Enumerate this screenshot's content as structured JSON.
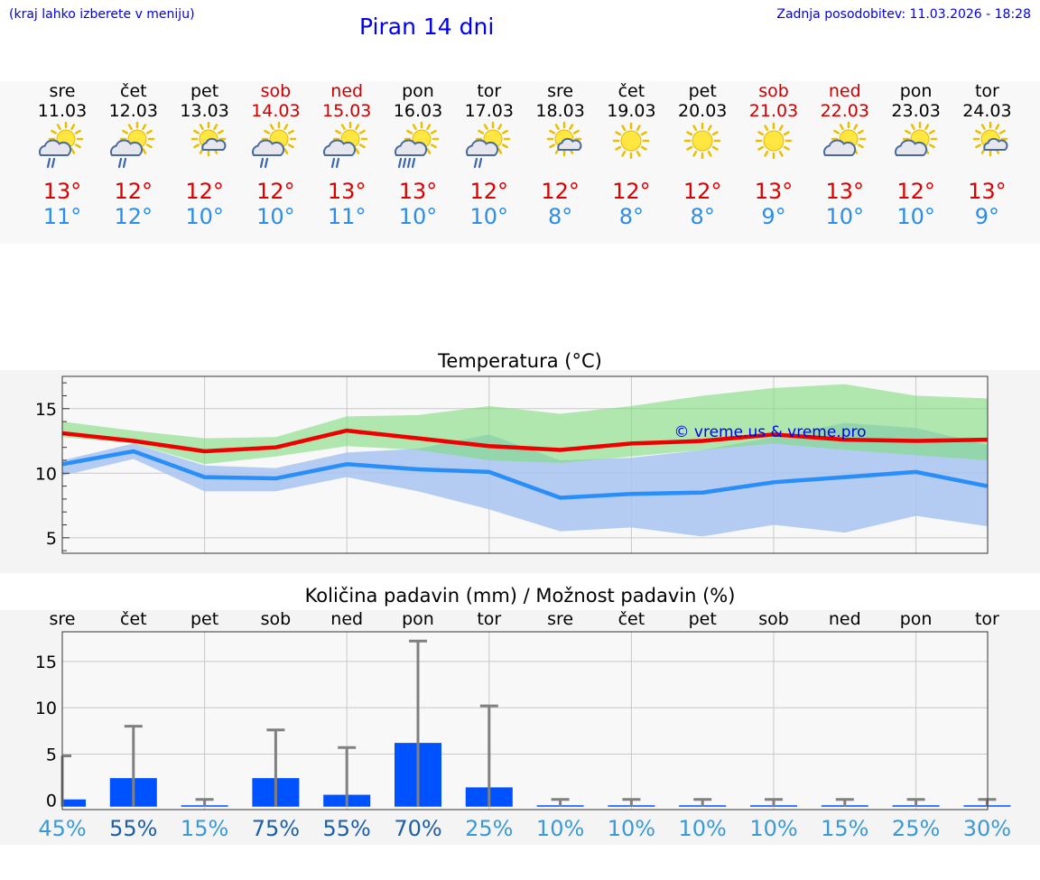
{
  "header": {
    "hint": "(kraj lahko izberete v meniju)",
    "title": "Piran 14 dni",
    "updated": "Zadnja posodobitev: 11.03.2026 - 18:28"
  },
  "days": [
    {
      "name": "sre",
      "date": "11.03",
      "weekend": false,
      "icon": "sun-cloud-rain-icon",
      "max": "13°",
      "min": "11°"
    },
    {
      "name": "čet",
      "date": "12.03",
      "weekend": false,
      "icon": "sun-cloud-rain-icon",
      "max": "12°",
      "min": "12°"
    },
    {
      "name": "pet",
      "date": "13.03",
      "weekend": false,
      "icon": "sun-small-cloud-icon",
      "max": "12°",
      "min": "10°"
    },
    {
      "name": "sob",
      "date": "14.03",
      "weekend": true,
      "icon": "sun-cloud-rain-icon",
      "max": "12°",
      "min": "10°"
    },
    {
      "name": "ned",
      "date": "15.03",
      "weekend": true,
      "icon": "sun-cloud-rain-icon",
      "max": "13°",
      "min": "11°"
    },
    {
      "name": "pon",
      "date": "16.03",
      "weekend": false,
      "icon": "sun-cloud-heavy-rain-icon",
      "max": "13°",
      "min": "10°"
    },
    {
      "name": "tor",
      "date": "17.03",
      "weekend": false,
      "icon": "sun-cloud-rain-icon",
      "max": "12°",
      "min": "10°"
    },
    {
      "name": "sre",
      "date": "18.03",
      "weekend": false,
      "icon": "sun-small-cloud-icon",
      "max": "12°",
      "min": "8°"
    },
    {
      "name": "čet",
      "date": "19.03",
      "weekend": false,
      "icon": "sun-icon",
      "max": "12°",
      "min": "8°"
    },
    {
      "name": "pet",
      "date": "20.03",
      "weekend": false,
      "icon": "sun-icon",
      "max": "12°",
      "min": "8°"
    },
    {
      "name": "sob",
      "date": "21.03",
      "weekend": true,
      "icon": "sun-icon",
      "max": "13°",
      "min": "9°"
    },
    {
      "name": "ned",
      "date": "22.03",
      "weekend": true,
      "icon": "sun-cloud-icon",
      "max": "13°",
      "min": "10°"
    },
    {
      "name": "pon",
      "date": "23.03",
      "weekend": false,
      "icon": "sun-cloud-icon",
      "max": "12°",
      "min": "10°"
    },
    {
      "name": "tor",
      "date": "24.03",
      "weekend": false,
      "icon": "sun-small-cloud-icon",
      "max": "13°",
      "min": "9°"
    }
  ],
  "chart_data": [
    {
      "type": "line",
      "title": "Temperatura (°C)",
      "watermark": "© vreme.us & vreme.pro",
      "ylim": [
        3.8,
        17.5
      ],
      "yticks": [
        5,
        10,
        15
      ],
      "grid": true,
      "x": [
        0,
        1,
        2,
        3,
        4,
        5,
        6,
        7,
        8,
        9,
        10,
        11,
        12,
        13
      ],
      "series": [
        {
          "name": "max",
          "color": "#ee0000",
          "values": [
            13.1,
            12.5,
            11.7,
            12.0,
            13.3,
            12.7,
            12.1,
            11.8,
            12.3,
            12.5,
            13.0,
            12.6,
            12.5,
            12.6
          ]
        },
        {
          "name": "min",
          "color": "#2a8ef8",
          "values": [
            10.7,
            11.7,
            9.7,
            9.6,
            10.7,
            10.3,
            10.1,
            8.1,
            8.4,
            8.5,
            9.3,
            9.7,
            10.1,
            9.0
          ]
        }
      ],
      "max_band": {
        "color": "#7fdc7f",
        "upper": [
          14.0,
          13.3,
          12.7,
          12.8,
          14.4,
          14.5,
          15.2,
          14.6,
          15.2,
          16.0,
          16.6,
          16.9,
          16.0,
          15.8
        ],
        "lower": [
          12.8,
          12.3,
          10.7,
          11.3,
          12.1,
          11.8,
          11.0,
          10.8,
          11.3,
          11.8,
          12.3,
          11.8,
          11.4,
          11.0
        ]
      },
      "min_band": {
        "color": "#a8c4f0",
        "upper": [
          11.0,
          12.3,
          10.6,
          10.4,
          11.6,
          11.9,
          13.0,
          11.0,
          11.2,
          11.8,
          12.8,
          13.9,
          13.5,
          12.2
        ],
        "lower": [
          9.8,
          11.1,
          8.6,
          8.6,
          9.7,
          8.6,
          7.2,
          5.5,
          5.8,
          5.1,
          6.0,
          5.4,
          6.7,
          5.9
        ]
      }
    },
    {
      "type": "bar",
      "title": "Količina padavin (mm) / Možnost padavin (%)",
      "ylim": [
        -1,
        18.2
      ],
      "yticks": [
        0,
        5,
        10,
        15
      ],
      "grid": true,
      "categories": [
        "sre",
        "čet",
        "pet",
        "sob",
        "ned",
        "pon",
        "tor",
        "sre",
        "čet",
        "pet",
        "sob",
        "ned",
        "pon",
        "tor"
      ],
      "values": [
        0.1,
        2.4,
        0,
        2.4,
        0.6,
        6.2,
        1.4,
        0,
        0,
        0,
        0,
        0,
        0,
        0
      ],
      "error_max": [
        4.8,
        8.0,
        0.1,
        7.6,
        5.7,
        17.2,
        10.2,
        0.1,
        0.1,
        0.1,
        0.1,
        0.1,
        0.1,
        0.1
      ],
      "probability": [
        "45%",
        "55%",
        "15%",
        "75%",
        "55%",
        "70%",
        "25%",
        "10%",
        "10%",
        "10%",
        "10%",
        "15%",
        "25%",
        "30%"
      ],
      "bar_color": "#0052ff",
      "error_color": "#808080"
    }
  ]
}
